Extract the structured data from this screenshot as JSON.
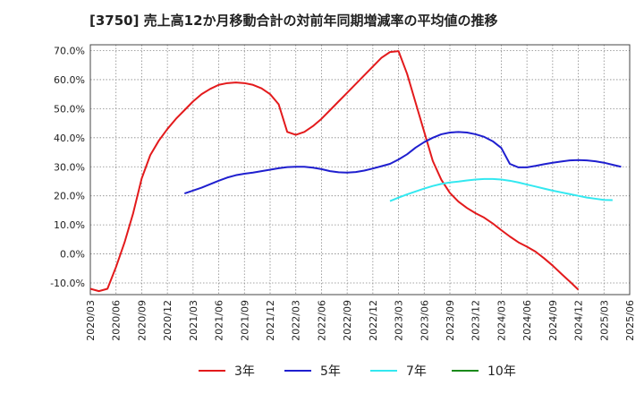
{
  "chart_data": {
    "type": "line",
    "title": "[3750]  売上高12か月移動合計の対前年同期増減率の平均値の推移",
    "xlabel": "",
    "ylabel": "",
    "ylim": [
      -14,
      72
    ],
    "yticks": [
      -10,
      0,
      10,
      20,
      30,
      40,
      50,
      60,
      70
    ],
    "ytick_labels": [
      "-10.0%",
      "0.0%",
      "10.0%",
      "20.0%",
      "30.0%",
      "40.0%",
      "50.0%",
      "60.0%",
      "70.0%"
    ],
    "x_start": "2020/03",
    "x_end": "2025/06",
    "xtick_labels": [
      "2020/03",
      "2020/06",
      "2020/09",
      "2020/12",
      "2021/03",
      "2021/06",
      "2021/09",
      "2021/12",
      "2022/03",
      "2022/06",
      "2022/09",
      "2022/12",
      "2023/03",
      "2023/06",
      "2023/09",
      "2023/12",
      "2024/03",
      "2024/06",
      "2024/09",
      "2024/12",
      "2025/03",
      "2025/06"
    ],
    "grid": true,
    "legend_position": "bottom",
    "series": [
      {
        "name": "3年",
        "color": "#e31a1c",
        "start": "2020/03",
        "values": [
          -12.0,
          -12.8,
          -12.0,
          -4.5,
          4.0,
          14.0,
          26.0,
          34.0,
          39.0,
          43.0,
          46.5,
          49.5,
          52.5,
          55.0,
          56.8,
          58.2,
          58.8,
          59.0,
          58.8,
          58.2,
          57.0,
          55.0,
          51.5,
          42.0,
          41.0,
          42.0,
          44.0,
          46.5,
          49.5,
          52.5,
          55.5,
          58.5,
          61.5,
          64.5,
          67.5,
          69.5,
          69.8,
          62.0,
          52.0,
          42.0,
          32.0,
          25.5,
          21.0,
          18.0,
          15.8,
          14.0,
          12.5,
          10.5,
          8.2,
          6.0,
          4.0,
          2.5,
          0.8,
          -1.5,
          -4.0,
          -6.8,
          -9.5,
          -12.3
        ]
      },
      {
        "name": "5年",
        "color": "#1f1fcf",
        "start": "2021/02",
        "values": [
          20.8,
          21.8,
          22.8,
          24.0,
          25.2,
          26.3,
          27.1,
          27.6,
          28.0,
          28.5,
          29.0,
          29.5,
          29.9,
          30.0,
          30.0,
          29.7,
          29.2,
          28.5,
          28.1,
          28.0,
          28.2,
          28.7,
          29.4,
          30.2,
          31.0,
          32.5,
          34.3,
          36.6,
          38.5,
          40.0,
          41.2,
          41.8,
          42.0,
          41.8,
          41.2,
          40.3,
          38.8,
          36.5,
          31.0,
          29.8,
          29.8,
          30.3,
          30.9,
          31.4,
          31.8,
          32.2,
          32.3,
          32.2,
          31.9,
          31.4,
          30.7,
          30.0
        ]
      },
      {
        "name": "7年",
        "color": "#33e8f0",
        "start": "2023/02",
        "values": [
          18.2,
          19.4,
          20.5,
          21.5,
          22.5,
          23.4,
          24.1,
          24.6,
          24.9,
          25.3,
          25.6,
          25.8,
          25.8,
          25.6,
          25.2,
          24.6,
          23.9,
          23.2,
          22.5,
          21.8,
          21.2,
          20.6,
          20.0,
          19.4,
          19.0,
          18.6,
          18.5
        ]
      },
      {
        "name": "10年",
        "color": "#1a8a1a",
        "start": "2020/03",
        "values": []
      }
    ]
  }
}
